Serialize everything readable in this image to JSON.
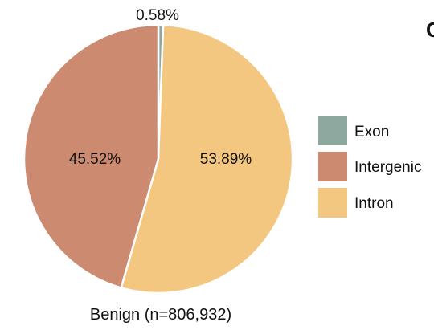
{
  "chart_data": {
    "type": "pie",
    "title": "",
    "caption": "Benign (n=806,932)",
    "panel_letter": "C",
    "slices": [
      {
        "name": "Exon",
        "value": 0.58,
        "label": "0.58%",
        "color": "#8ea89f"
      },
      {
        "name": "Intron",
        "value": 53.89,
        "label": "53.89%",
        "color": "#f3c77f"
      },
      {
        "name": "Intergenic",
        "value": 45.52,
        "label": "45.52%",
        "color": "#cc8a71"
      }
    ],
    "legend": [
      {
        "label": "Exon",
        "color": "#8ea89f"
      },
      {
        "label": "Intergenic",
        "color": "#cc8a71"
      },
      {
        "label": "Intron",
        "color": "#f3c77f"
      }
    ],
    "legend_position": "right"
  }
}
